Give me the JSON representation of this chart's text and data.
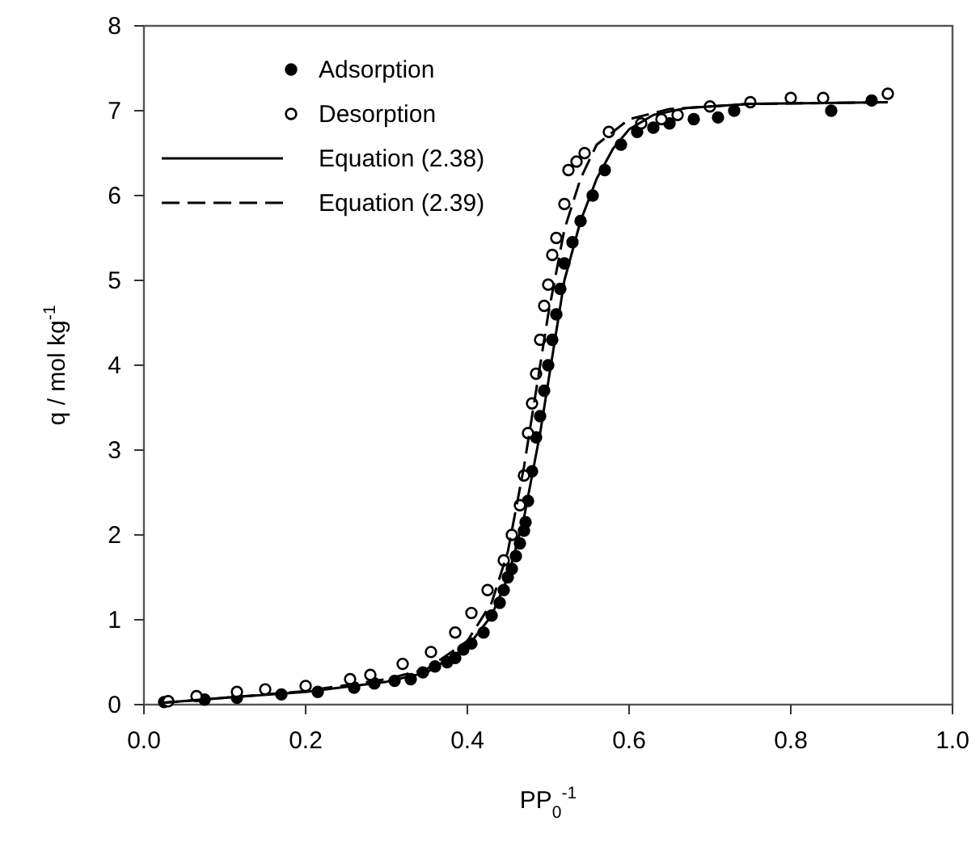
{
  "chart_data": {
    "type": "scatter",
    "xlabel": "PP$_{0}$$^{-1}$",
    "ylabel": "q / mol kg$^{-1}$",
    "xlim": [
      0,
      1
    ],
    "ylim": [
      0,
      8
    ],
    "xticks": [
      {
        "value": 0,
        "label": "0.0"
      },
      {
        "value": 0.2,
        "label": "0.2"
      },
      {
        "value": 0.4,
        "label": "0.4"
      },
      {
        "value": 0.6,
        "label": "0.6"
      },
      {
        "value": 0.8,
        "label": "0.8"
      },
      {
        "value": 1,
        "label": "1.0"
      }
    ],
    "yticks": [
      0,
      1,
      2,
      3,
      4,
      5,
      6,
      7,
      8
    ],
    "legend": "top left",
    "series": [
      {
        "name": "Adsorption",
        "marker": "circle",
        "color": "#000000",
        "x": [
          0.025,
          0.075,
          0.115,
          0.17,
          0.215,
          0.26,
          0.285,
          0.31,
          0.33,
          0.345,
          0.36,
          0.375,
          0.385,
          0.395,
          0.405,
          0.42,
          0.43,
          0.44,
          0.445,
          0.45,
          0.455,
          0.46,
          0.465,
          0.47,
          0.472,
          0.475,
          0.48,
          0.485,
          0.49,
          0.495,
          0.5,
          0.505,
          0.51,
          0.515,
          0.52,
          0.53,
          0.54,
          0.555,
          0.57,
          0.59,
          0.61,
          0.63,
          0.65,
          0.68,
          0.71,
          0.73,
          0.85,
          0.9
        ],
        "values": [
          0.03,
          0.06,
          0.08,
          0.12,
          0.15,
          0.2,
          0.25,
          0.28,
          0.3,
          0.38,
          0.45,
          0.5,
          0.55,
          0.65,
          0.72,
          0.85,
          1.05,
          1.2,
          1.35,
          1.5,
          1.6,
          1.75,
          1.9,
          2.05,
          2.15,
          2.4,
          2.75,
          3.15,
          3.4,
          3.7,
          4.0,
          4.3,
          4.6,
          4.9,
          5.2,
          5.45,
          5.7,
          6.0,
          6.3,
          6.6,
          6.75,
          6.8,
          6.85,
          6.9,
          6.92,
          7.0,
          7.0,
          7.12
        ]
      },
      {
        "name": "Desorption",
        "marker": "circle",
        "color": "#ffffff",
        "x": [
          0.03,
          0.065,
          0.115,
          0.15,
          0.2,
          0.255,
          0.28,
          0.32,
          0.355,
          0.385,
          0.405,
          0.425,
          0.445,
          0.455,
          0.465,
          0.47,
          0.475,
          0.48,
          0.485,
          0.49,
          0.495,
          0.5,
          0.505,
          0.51,
          0.52,
          0.525,
          0.535,
          0.545,
          0.575,
          0.615,
          0.64,
          0.66,
          0.7,
          0.75,
          0.8,
          0.84,
          0.92
        ],
        "values": [
          0.04,
          0.1,
          0.15,
          0.18,
          0.22,
          0.3,
          0.35,
          0.48,
          0.62,
          0.85,
          1.08,
          1.35,
          1.7,
          2.0,
          2.35,
          2.7,
          3.2,
          3.55,
          3.9,
          4.3,
          4.7,
          4.95,
          5.3,
          5.5,
          5.9,
          6.3,
          6.4,
          6.5,
          6.75,
          6.85,
          6.9,
          6.95,
          7.05,
          7.1,
          7.15,
          7.15,
          7.2
        ]
      },
      {
        "name": "Equation (2.38)",
        "type": "line",
        "line_style": "solid",
        "color": "#000000",
        "x": [
          0.02,
          0.1,
          0.2,
          0.3,
          0.35,
          0.4,
          0.43,
          0.45,
          0.47,
          0.49,
          0.5,
          0.51,
          0.52,
          0.54,
          0.56,
          0.58,
          0.6,
          0.63,
          0.67,
          0.75,
          0.92
        ],
        "values": [
          0.02,
          0.08,
          0.15,
          0.27,
          0.38,
          0.68,
          1.05,
          1.5,
          2.2,
          3.2,
          3.8,
          4.4,
          5.0,
          5.7,
          6.2,
          6.55,
          6.78,
          6.95,
          7.03,
          7.08,
          7.1
        ]
      },
      {
        "name": "Equation (2.39)",
        "type": "line",
        "line_style": "dashed",
        "color": "#000000",
        "x": [
          0.02,
          0.1,
          0.2,
          0.3,
          0.35,
          0.4,
          0.43,
          0.45,
          0.47,
          0.48,
          0.49,
          0.5,
          0.52,
          0.54,
          0.56,
          0.6,
          0.65,
          0.75,
          0.92
        ],
        "values": [
          0.02,
          0.08,
          0.16,
          0.3,
          0.42,
          0.75,
          1.2,
          1.8,
          2.8,
          3.4,
          4.0,
          4.6,
          5.6,
          6.2,
          6.6,
          6.9,
          7.02,
          7.08,
          7.1
        ]
      }
    ]
  }
}
